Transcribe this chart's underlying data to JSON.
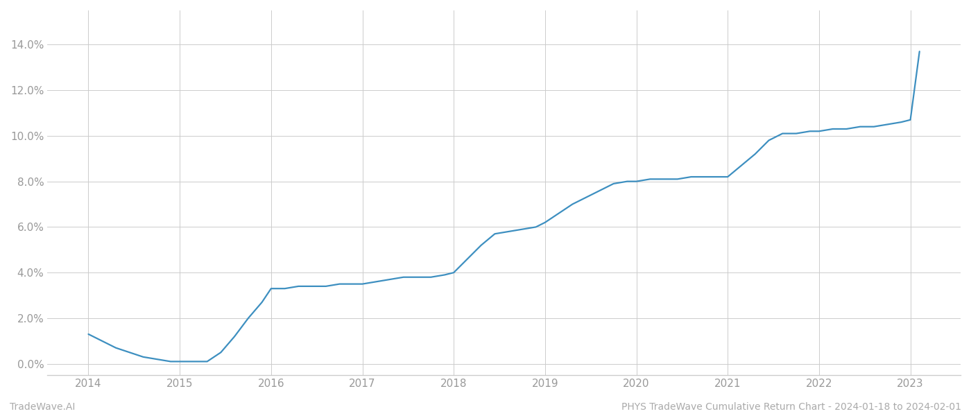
{
  "x_years": [
    2014.0,
    2014.15,
    2014.3,
    2014.45,
    2014.6,
    2014.75,
    2014.9,
    2015.0,
    2015.15,
    2015.3,
    2015.45,
    2015.6,
    2015.75,
    2015.9,
    2016.0,
    2016.15,
    2016.3,
    2016.45,
    2016.6,
    2016.75,
    2016.9,
    2017.0,
    2017.15,
    2017.3,
    2017.45,
    2017.6,
    2017.75,
    2017.9,
    2018.0,
    2018.15,
    2018.3,
    2018.45,
    2018.6,
    2018.75,
    2018.9,
    2019.0,
    2019.15,
    2019.3,
    2019.45,
    2019.6,
    2019.75,
    2019.9,
    2020.0,
    2020.15,
    2020.3,
    2020.45,
    2020.6,
    2020.75,
    2020.9,
    2021.0,
    2021.15,
    2021.3,
    2021.45,
    2021.6,
    2021.75,
    2021.9,
    2022.0,
    2022.15,
    2022.3,
    2022.45,
    2022.6,
    2022.75,
    2022.9,
    2023.0,
    2023.1
  ],
  "y_values": [
    0.013,
    0.01,
    0.007,
    0.005,
    0.003,
    0.002,
    0.001,
    0.001,
    0.001,
    0.001,
    0.005,
    0.012,
    0.02,
    0.027,
    0.033,
    0.033,
    0.034,
    0.034,
    0.034,
    0.035,
    0.035,
    0.035,
    0.036,
    0.037,
    0.038,
    0.038,
    0.038,
    0.039,
    0.04,
    0.046,
    0.052,
    0.057,
    0.058,
    0.059,
    0.06,
    0.062,
    0.066,
    0.07,
    0.073,
    0.076,
    0.079,
    0.08,
    0.08,
    0.081,
    0.081,
    0.081,
    0.082,
    0.082,
    0.082,
    0.082,
    0.087,
    0.092,
    0.098,
    0.101,
    0.101,
    0.102,
    0.102,
    0.103,
    0.103,
    0.104,
    0.104,
    0.105,
    0.106,
    0.107,
    0.137
  ],
  "line_color": "#3d8fc0",
  "line_width": 1.6,
  "background_color": "#ffffff",
  "grid_color": "#cccccc",
  "xlim": [
    2013.55,
    2023.55
  ],
  "ylim": [
    -0.005,
    0.155
  ],
  "yticks": [
    0.0,
    0.02,
    0.04,
    0.06,
    0.08,
    0.1,
    0.12,
    0.14
  ],
  "xticks": [
    2014,
    2015,
    2016,
    2017,
    2018,
    2019,
    2020,
    2021,
    2022,
    2023
  ],
  "watermark_left": "TradeWave.AI",
  "watermark_right": "PHYS TradeWave Cumulative Return Chart - 2024-01-18 to 2024-02-01",
  "tick_label_color": "#999999",
  "watermark_color": "#aaaaaa",
  "spine_color": "#cccccc",
  "tick_fontsize": 11,
  "watermark_fontsize": 10
}
